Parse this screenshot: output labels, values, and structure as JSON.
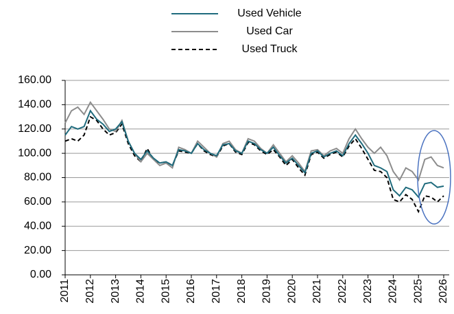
{
  "chart_data": {
    "type": "line",
    "categories": [
      "2011",
      null,
      null,
      null,
      "2012",
      null,
      null,
      null,
      "2013",
      null,
      null,
      null,
      "2014",
      null,
      null,
      null,
      "2015",
      null,
      null,
      null,
      "2016",
      null,
      null,
      null,
      "2017",
      null,
      null,
      null,
      "2018",
      null,
      null,
      null,
      "2019",
      null,
      null,
      null,
      "2020",
      null,
      null,
      null,
      "2021",
      null,
      null,
      null,
      "2022",
      null,
      null,
      null,
      "2023",
      null,
      null,
      null,
      "2024",
      null,
      null,
      null,
      "2025",
      null,
      null,
      null,
      "2026"
    ],
    "series": [
      {
        "name": "Used Vehicle",
        "color": "#1f6b7d",
        "values": [
          115,
          122,
          120,
          122,
          135,
          128,
          124,
          118,
          120,
          126,
          110,
          100,
          95,
          102,
          96,
          92,
          93,
          90,
          103,
          102,
          100,
          108,
          103,
          100,
          98,
          107,
          108,
          102,
          100,
          110,
          108,
          103,
          100,
          105,
          98,
          92,
          96,
          90,
          84,
          100,
          102,
          97,
          100,
          102,
          98,
          108,
          115,
          108,
          100,
          90,
          88,
          85,
          70,
          65,
          72,
          70,
          64,
          75,
          76,
          72,
          73
        ]
      },
      {
        "name": "Used Car",
        "color": "#8c8c8c",
        "values": [
          125,
          135,
          138,
          132,
          142,
          135,
          128,
          120,
          118,
          127,
          110,
          100,
          93,
          100,
          95,
          90,
          92,
          88,
          105,
          103,
          100,
          110,
          105,
          100,
          97,
          108,
          110,
          103,
          100,
          112,
          110,
          104,
          100,
          107,
          100,
          93,
          98,
          92,
          85,
          102,
          103,
          98,
          102,
          104,
          100,
          112,
          120,
          112,
          105,
          100,
          105,
          98,
          85,
          78,
          88,
          85,
          78,
          95,
          97,
          90,
          88
        ]
      },
      {
        "name": "Used Truck",
        "color": "#000000",
        "dash": true,
        "values": [
          110,
          112,
          110,
          115,
          130,
          127,
          120,
          115,
          117,
          124,
          108,
          98,
          93,
          104,
          95,
          92,
          93,
          90,
          102,
          101,
          100,
          108,
          102,
          99,
          97,
          106,
          108,
          101,
          99,
          109,
          107,
          102,
          99,
          103,
          97,
          90,
          95,
          88,
          82,
          99,
          101,
          96,
          99,
          101,
          97,
          106,
          112,
          104,
          95,
          86,
          85,
          80,
          62,
          60,
          66,
          62,
          52,
          65,
          64,
          60,
          65
        ]
      }
    ],
    "ylim": [
      0,
      160
    ],
    "yticks": [
      {
        "value": 0,
        "label": "0.00"
      },
      {
        "value": 20,
        "label": "20.00"
      },
      {
        "value": 40,
        "label": "40.00"
      },
      {
        "value": 60,
        "label": "60.00"
      },
      {
        "value": 80,
        "label": "80.00"
      },
      {
        "value": 100,
        "label": "100.00"
      },
      {
        "value": 120,
        "label": "120.00"
      },
      {
        "value": 140,
        "label": "140.00"
      },
      {
        "value": 160,
        "label": "160.00"
      }
    ],
    "grid": true,
    "legend": "top"
  }
}
